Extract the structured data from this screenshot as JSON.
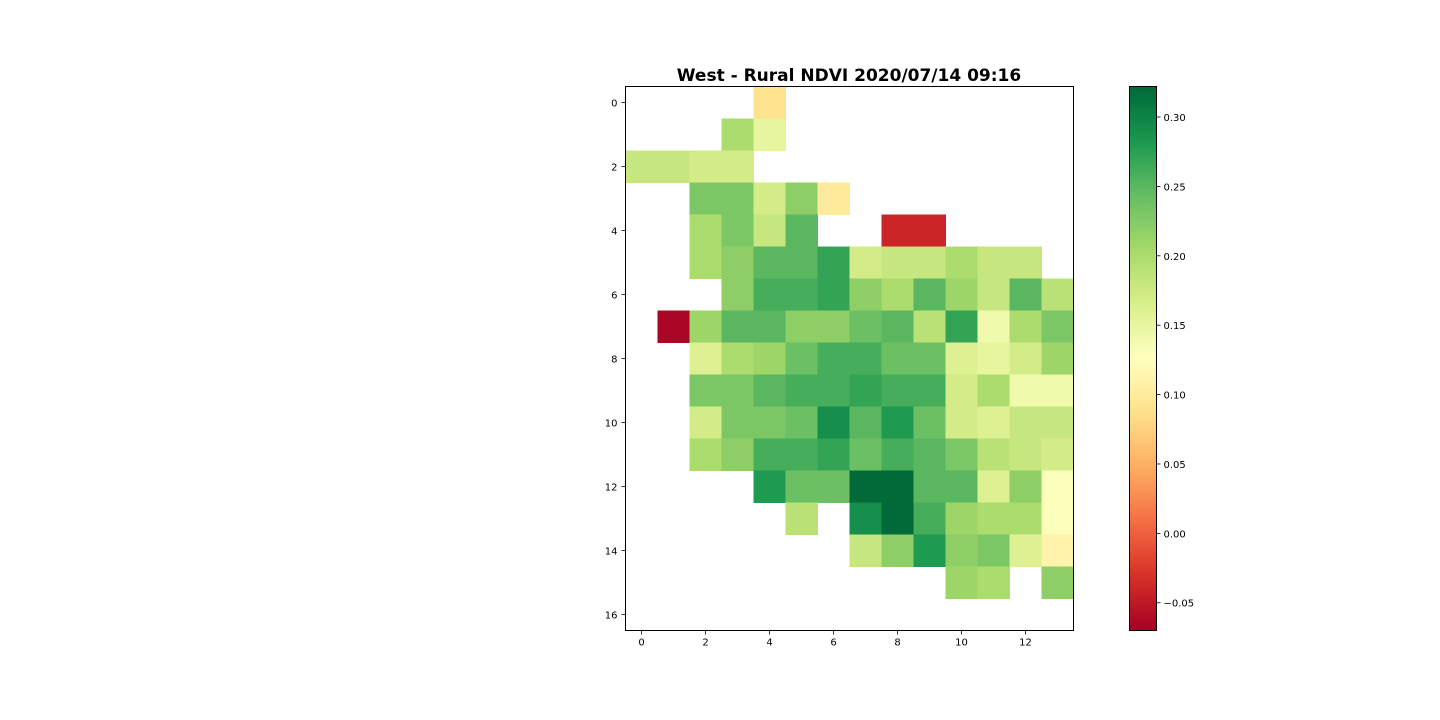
{
  "chart_data": {
    "type": "heatmap",
    "title": "West - Rural NDVI 2020/07/14 09:16",
    "xlabel": "",
    "ylabel": "",
    "n_cols": 14,
    "n_rows": 17,
    "x_ticks": [
      0,
      2,
      4,
      6,
      8,
      10,
      12
    ],
    "y_ticks": [
      0,
      2,
      4,
      6,
      8,
      10,
      12,
      14,
      16
    ],
    "colormap": "RdYlGn",
    "vmin": -0.07,
    "vmax": 0.322,
    "colorbar_ticks": [
      -0.05,
      0.0,
      0.05,
      0.1,
      0.15,
      0.2,
      0.25,
      0.3
    ],
    "colorbar_tick_labels": [
      "−0.05",
      "0.00",
      "0.05",
      "0.10",
      "0.15",
      "0.20",
      "0.25",
      "0.30"
    ],
    "values": [
      [
        null,
        null,
        null,
        null,
        0.09,
        null,
        null,
        null,
        null,
        null,
        null,
        null,
        null,
        null
      ],
      [
        null,
        null,
        null,
        0.2,
        0.15,
        null,
        null,
        null,
        null,
        null,
        null,
        null,
        null,
        null
      ],
      [
        0.18,
        0.18,
        0.17,
        0.17,
        null,
        null,
        null,
        null,
        null,
        null,
        null,
        null,
        null,
        null
      ],
      [
        null,
        null,
        0.23,
        0.23,
        0.17,
        0.22,
        0.1,
        null,
        null,
        null,
        null,
        null,
        null,
        null
      ],
      [
        null,
        null,
        0.2,
        0.23,
        0.18,
        0.25,
        null,
        null,
        -0.04,
        -0.04,
        null,
        null,
        null,
        null
      ],
      [
        null,
        null,
        0.2,
        0.22,
        0.25,
        0.25,
        0.27,
        0.17,
        0.18,
        0.18,
        0.2,
        0.18,
        0.18,
        null
      ],
      [
        null,
        null,
        null,
        0.22,
        0.26,
        0.26,
        0.27,
        0.22,
        0.2,
        0.25,
        0.21,
        0.18,
        0.25,
        0.19
      ],
      [
        null,
        -0.065,
        0.21,
        0.25,
        0.25,
        0.22,
        0.22,
        0.24,
        0.25,
        0.19,
        0.27,
        0.14,
        0.2,
        0.23
      ],
      [
        null,
        null,
        0.16,
        0.2,
        0.21,
        0.24,
        0.26,
        0.26,
        0.24,
        0.24,
        0.16,
        0.15,
        0.17,
        0.21
      ],
      [
        null,
        null,
        0.23,
        0.23,
        0.25,
        0.26,
        0.26,
        0.27,
        0.26,
        0.26,
        0.17,
        0.2,
        0.14,
        0.14
      ],
      [
        null,
        null,
        0.17,
        0.23,
        0.23,
        0.24,
        0.29,
        0.25,
        0.28,
        0.24,
        0.17,
        0.16,
        0.18,
        0.18
      ],
      [
        null,
        null,
        0.2,
        0.22,
        0.26,
        0.26,
        0.27,
        0.24,
        0.26,
        0.25,
        0.23,
        0.19,
        0.18,
        0.17
      ],
      [
        null,
        null,
        null,
        null,
        0.28,
        0.24,
        0.24,
        0.32,
        0.32,
        0.25,
        0.25,
        0.16,
        0.22,
        0.13
      ],
      [
        null,
        null,
        null,
        null,
        null,
        0.19,
        null,
        0.29,
        0.32,
        0.26,
        0.21,
        0.2,
        0.2,
        0.13
      ],
      [
        null,
        null,
        null,
        null,
        null,
        null,
        null,
        0.18,
        0.22,
        0.28,
        0.22,
        0.23,
        0.16,
        0.11
      ],
      [
        null,
        null,
        null,
        null,
        null,
        null,
        null,
        null,
        null,
        null,
        0.21,
        0.2,
        null,
        0.22
      ],
      [
        null,
        null,
        null,
        null,
        null,
        null,
        null,
        null,
        null,
        null,
        null,
        null,
        null,
        null
      ]
    ]
  }
}
